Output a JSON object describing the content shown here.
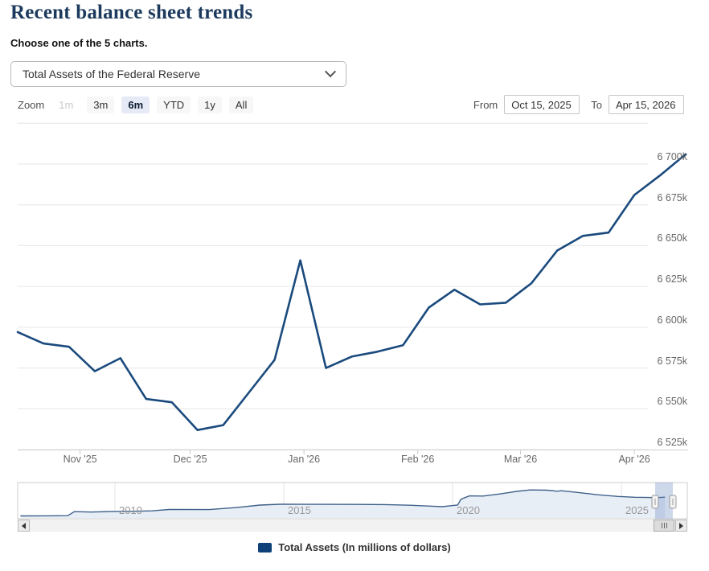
{
  "header": {
    "title": "Recent balance sheet trends",
    "subtitle": "Choose one of the 5 charts."
  },
  "chart_selector": {
    "selected": "Total Assets of the Federal Reserve"
  },
  "toolbar": {
    "zoom_label": "Zoom",
    "zoom_buttons": [
      {
        "label": "1m",
        "state": "disabled"
      },
      {
        "label": "3m",
        "state": "normal"
      },
      {
        "label": "6m",
        "state": "selected"
      },
      {
        "label": "YTD",
        "state": "normal"
      },
      {
        "label": "1y",
        "state": "normal"
      },
      {
        "label": "All",
        "state": "normal"
      }
    ],
    "from_label": "From",
    "from_value": "Oct 15, 2025",
    "to_label": "To",
    "to_value": "Apr 15, 2026"
  },
  "legend": {
    "label": "Total Assets (In millions of dollars)",
    "color": "#0f4179"
  },
  "chart_data": {
    "type": "line",
    "title": "Total Assets of the Federal Reserve",
    "unit": "thousands of millions of dollars (k)",
    "series": [
      {
        "name": "Total Assets (In millions of dollars)",
        "color": "#1a4a7d",
        "dates": [
          "2025-10-15",
          "2025-10-22",
          "2025-10-29",
          "2025-11-05",
          "2025-11-12",
          "2025-11-19",
          "2025-11-26",
          "2025-12-03",
          "2025-12-10",
          "2025-12-17",
          "2025-12-24",
          "2025-12-31",
          "2026-01-07",
          "2026-01-14",
          "2026-01-21",
          "2026-01-28",
          "2026-02-04",
          "2026-02-11",
          "2026-02-18",
          "2026-02-25",
          "2026-03-04",
          "2026-03-11",
          "2026-03-18",
          "2026-03-25",
          "2026-04-01",
          "2026-04-08",
          "2026-04-15"
        ],
        "values": [
          6597,
          6590,
          6588,
          6573,
          6581,
          6556,
          6554,
          6537,
          6540,
          6560,
          6580,
          6641,
          6575,
          6582,
          6585,
          6589,
          6612,
          6623,
          6614,
          6615,
          6627,
          6647,
          6656,
          6658,
          6681,
          6693,
          6706
        ]
      }
    ],
    "yaxis": {
      "min": 6525,
      "max": 6725,
      "tick_interval": 25,
      "tick_labels": [
        "6 525k",
        "6 550k",
        "6 575k",
        "6 600k",
        "6 625k",
        "6 650k",
        "6 675k",
        "6 700k"
      ],
      "grid": true,
      "labels_side": "right"
    },
    "xaxis": {
      "tick_labels": [
        "Nov '25",
        "Dec '25",
        "Jan '26",
        "Feb '26",
        "Mar '26",
        "Apr '26"
      ]
    },
    "range": {
      "from": "2025-10-15",
      "to": "2026-04-15"
    },
    "legend_position": "bottom"
  },
  "navigator": {
    "type": "area",
    "line_color": "#3f618a",
    "fill_color": "#e8eef6",
    "mask_color": "rgba(102,133,194,0.32)",
    "year_labels": [
      "2010",
      "2015",
      "2020",
      "2025"
    ],
    "years": [
      2007.2,
      2008.0,
      2008.6,
      2008.8,
      2009.3,
      2009.9,
      2010.6,
      2011.1,
      2011.6,
      2012.8,
      2013.6,
      2014.3,
      2014.9,
      2016.0,
      2017.2,
      2018.0,
      2018.8,
      2019.4,
      2019.7,
      2019.95,
      2020.15,
      2020.25,
      2020.5,
      2020.9,
      2021.4,
      2021.9,
      2022.3,
      2022.8,
      2023.1,
      2023.22,
      2023.7,
      2024.3,
      2024.9,
      2025.4,
      2025.8,
      2026.05,
      2026.29
    ],
    "values": [
      870,
      905,
      940,
      2210,
      2080,
      2230,
      2320,
      2450,
      2870,
      2860,
      3470,
      4240,
      4500,
      4470,
      4450,
      4400,
      4180,
      3890,
      3760,
      4060,
      4240,
      6080,
      7100,
      7060,
      7700,
      8500,
      8940,
      8880,
      8550,
      8690,
      8180,
      7450,
      6930,
      6670,
      6590,
      6560,
      6706
    ],
    "selected_from": "Oct 15, 2025",
    "selected_to": "Apr 15, 2026"
  }
}
